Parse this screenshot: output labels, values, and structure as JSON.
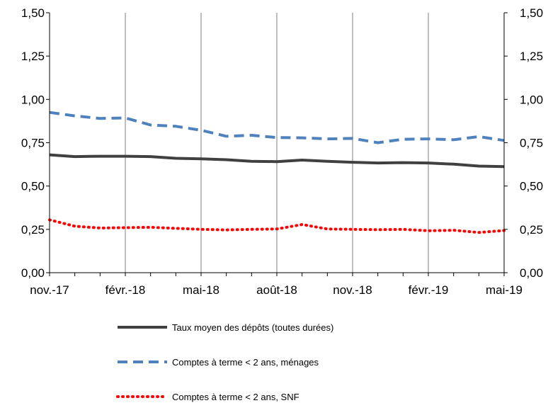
{
  "chart_data": {
    "type": "line",
    "x": [
      "nov.-17",
      "déc.-17",
      "janv.-18",
      "févr.-18",
      "mars-18",
      "avr.-18",
      "mai-18",
      "juin-18",
      "juil.-18",
      "août-18",
      "sept.-18",
      "oct.-18",
      "nov.-18",
      "déc.-18",
      "janv.-19",
      "févr.-19",
      "mars-19",
      "avr.-19",
      "mai-19"
    ],
    "x_tick_labels": [
      "nov.-17",
      "févr.-18",
      "mai-18",
      "août-18",
      "nov.-18",
      "févr.-19",
      "mai-19"
    ],
    "y_ticks": [
      "0,00",
      "0,25",
      "0,50",
      "0,75",
      "1,00",
      "1,25",
      "1,50"
    ],
    "ylim": [
      0,
      1.5
    ],
    "grid": "vertical",
    "legend_position": "bottom",
    "series": [
      {
        "name": "Taux moyen des dépôts (toutes durées)",
        "color": "#404040",
        "style": "solid",
        "values": [
          0.68,
          0.67,
          0.672,
          0.672,
          0.67,
          0.66,
          0.657,
          0.652,
          0.643,
          0.641,
          0.65,
          0.643,
          0.637,
          0.633,
          0.635,
          0.633,
          0.626,
          0.615,
          0.612
        ]
      },
      {
        "name": "Comptes à terme < 2 ans, ménages",
        "color": "#4f81bd",
        "style": "dashed",
        "values": [
          0.925,
          0.905,
          0.89,
          0.893,
          0.852,
          0.845,
          0.822,
          0.787,
          0.793,
          0.78,
          0.778,
          0.772,
          0.775,
          0.75,
          0.77,
          0.772,
          0.767,
          0.785,
          0.763
        ]
      },
      {
        "name": "Comptes à terme < 2 ans, SNF",
        "color": "#ff0000",
        "style": "dotted",
        "values": [
          0.305,
          0.268,
          0.258,
          0.26,
          0.262,
          0.256,
          0.25,
          0.247,
          0.25,
          0.252,
          0.278,
          0.252,
          0.25,
          0.248,
          0.25,
          0.242,
          0.245,
          0.232,
          0.243
        ]
      }
    ]
  }
}
